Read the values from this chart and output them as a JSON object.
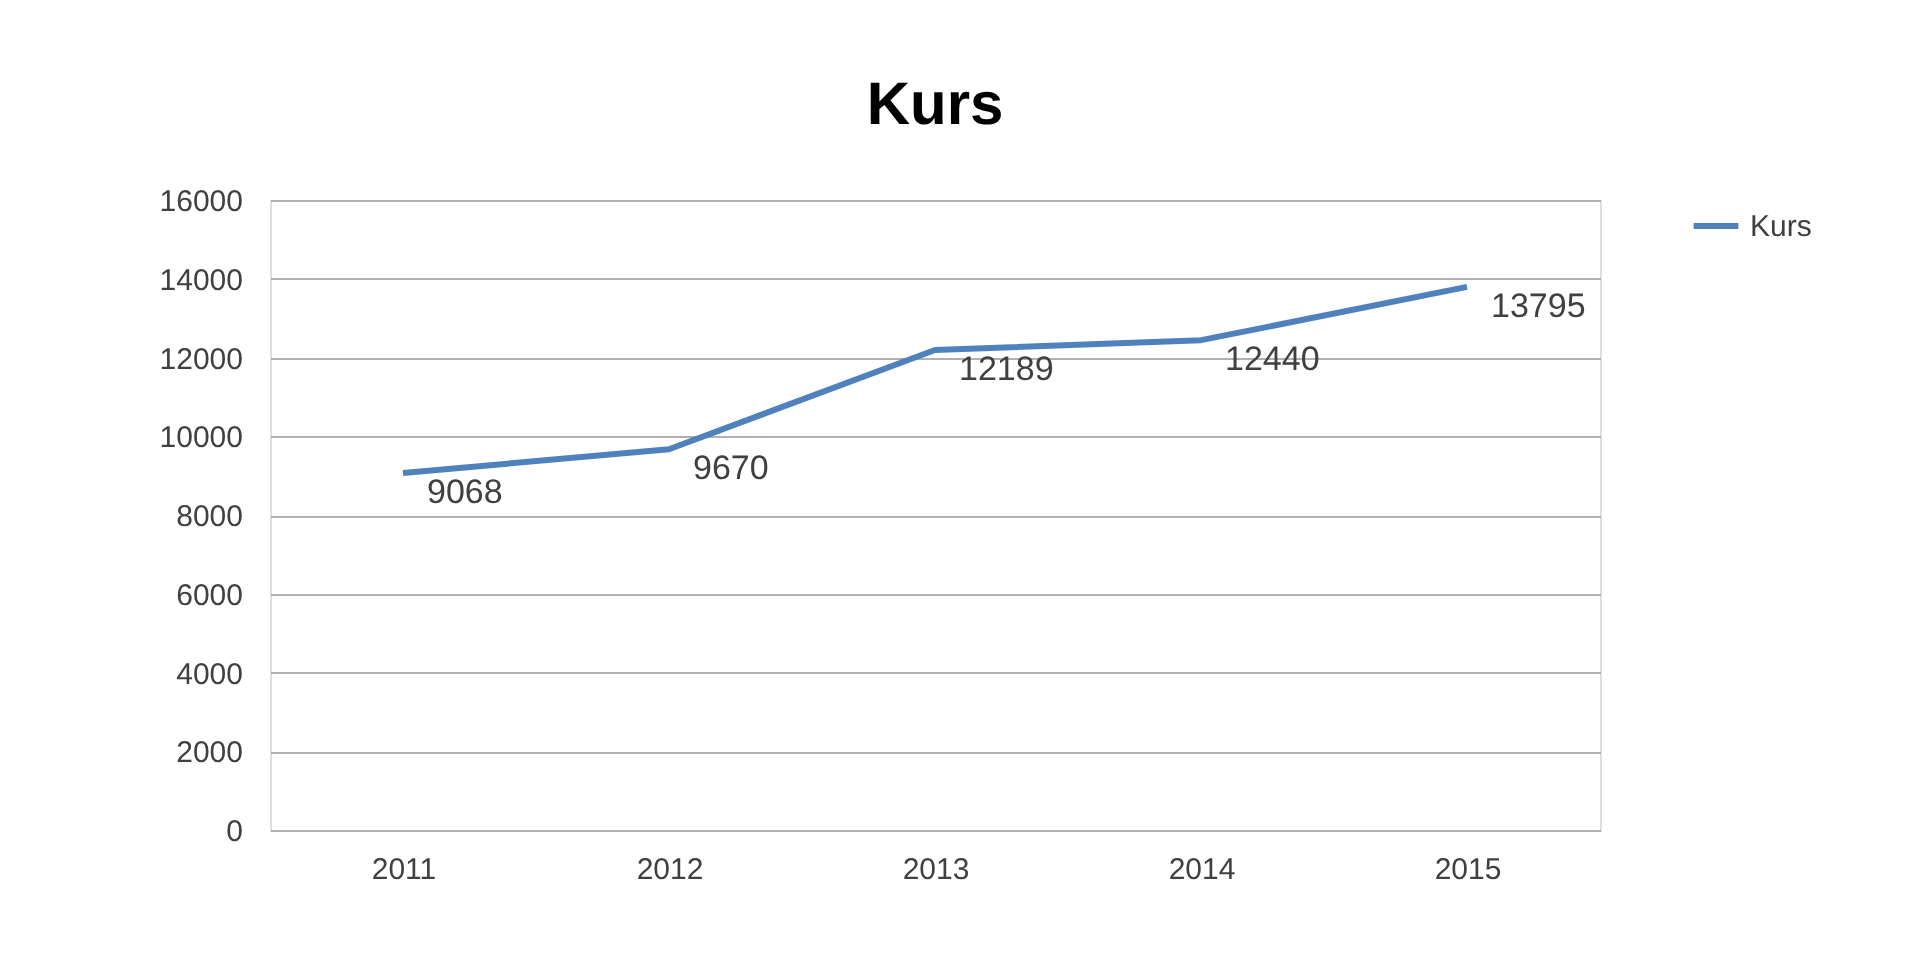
{
  "chart_data": {
    "type": "line",
    "title": "Kurs",
    "categories": [
      "2011",
      "2012",
      "2013",
      "2014",
      "2015"
    ],
    "series": [
      {
        "name": "Kurs",
        "color": "#4f81bd",
        "values": [
          9068,
          9670,
          12189,
          12440,
          13795
        ]
      }
    ],
    "ylim": [
      0,
      16000
    ],
    "yticks": [
      0,
      2000,
      4000,
      6000,
      8000,
      10000,
      12000,
      14000,
      16000
    ],
    "grid": "y",
    "legend": "right",
    "data_labels": true,
    "marker": "none",
    "line_style": "solid"
  }
}
